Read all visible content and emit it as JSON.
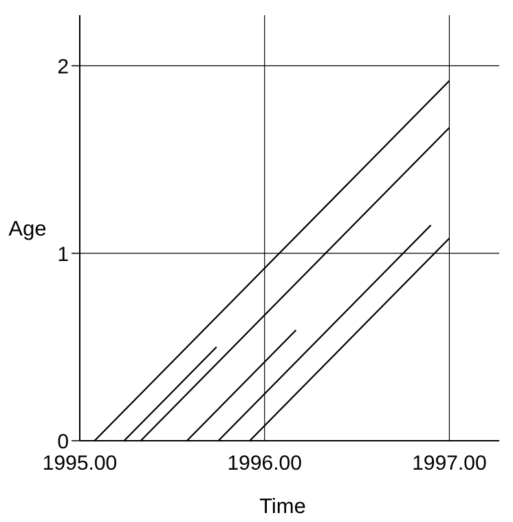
{
  "chart_data": {
    "type": "line",
    "title": "",
    "xlabel": "Time",
    "ylabel": "Age",
    "xlim": [
      1995.0,
      1997.27
    ],
    "ylim": [
      0,
      2.27
    ],
    "x_ticks": [
      1995.0,
      1996.0,
      1997.0
    ],
    "x_tick_labels": [
      "1995.00",
      "1996.00",
      "1997.00"
    ],
    "y_ticks": [
      0,
      1,
      2
    ],
    "y_tick_labels": [
      "0",
      "1",
      "2"
    ],
    "grid": true,
    "legend": "none",
    "line_color": "#000000",
    "series": [
      {
        "x": [
          1995.08,
          1997.0
        ],
        "y": [
          0,
          1.92
        ]
      },
      {
        "x": [
          1995.24,
          1995.74
        ],
        "y": [
          0,
          0.5
        ]
      },
      {
        "x": [
          1995.33,
          1997.0
        ],
        "y": [
          0,
          1.67
        ]
      },
      {
        "x": [
          1995.58,
          1996.17
        ],
        "y": [
          0,
          0.59
        ]
      },
      {
        "x": [
          1995.75,
          1996.9
        ],
        "y": [
          0,
          1.15
        ]
      },
      {
        "x": [
          1995.92,
          1997.0
        ],
        "y": [
          0,
          1.08
        ]
      }
    ]
  }
}
